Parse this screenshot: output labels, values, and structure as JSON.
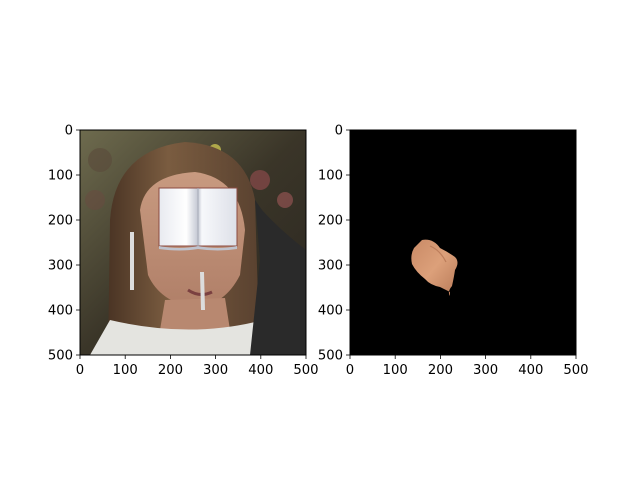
{
  "chart_data": [
    {
      "type": "image",
      "description": "",
      "xlim": [
        0,
        500
      ],
      "ylim": [
        500,
        0
      ],
      "xticks": [
        0,
        100,
        200,
        300,
        400,
        500
      ],
      "yticks": [
        0,
        100,
        200,
        300,
        400,
        500
      ],
      "xtick_labels": [
        "0",
        "100",
        "200",
        "300",
        "400",
        "500"
      ],
      "ytick_labels": [
        "0",
        "100",
        "200",
        "300",
        "400",
        "500"
      ],
      "title": "",
      "xlabel": "",
      "ylabel": "",
      "grid": false
    },
    {
      "type": "image",
      "description": "",
      "xlim": [
        0,
        500
      ],
      "ylim": [
        500,
        0
      ],
      "xticks": [
        0,
        100,
        200,
        300,
        400,
        500
      ],
      "yticks": [
        0,
        100,
        200,
        300,
        400,
        500
      ],
      "xtick_labels": [
        "0",
        "100",
        "200",
        "300",
        "400",
        "500"
      ],
      "ytick_labels": [
        "0",
        "100",
        "200",
        "300",
        "400",
        "500"
      ],
      "title": "",
      "xlabel": "",
      "ylabel": "",
      "grid": false
    }
  ],
  "colors": {
    "axes_edge": "#000000",
    "mask_background": "#000000",
    "skin": "#d4956a",
    "book_white": "#f4f5f8",
    "book_shadow": "#c3c7d2",
    "hair": "#6b5138",
    "photo_background": "#3c3a2e"
  }
}
